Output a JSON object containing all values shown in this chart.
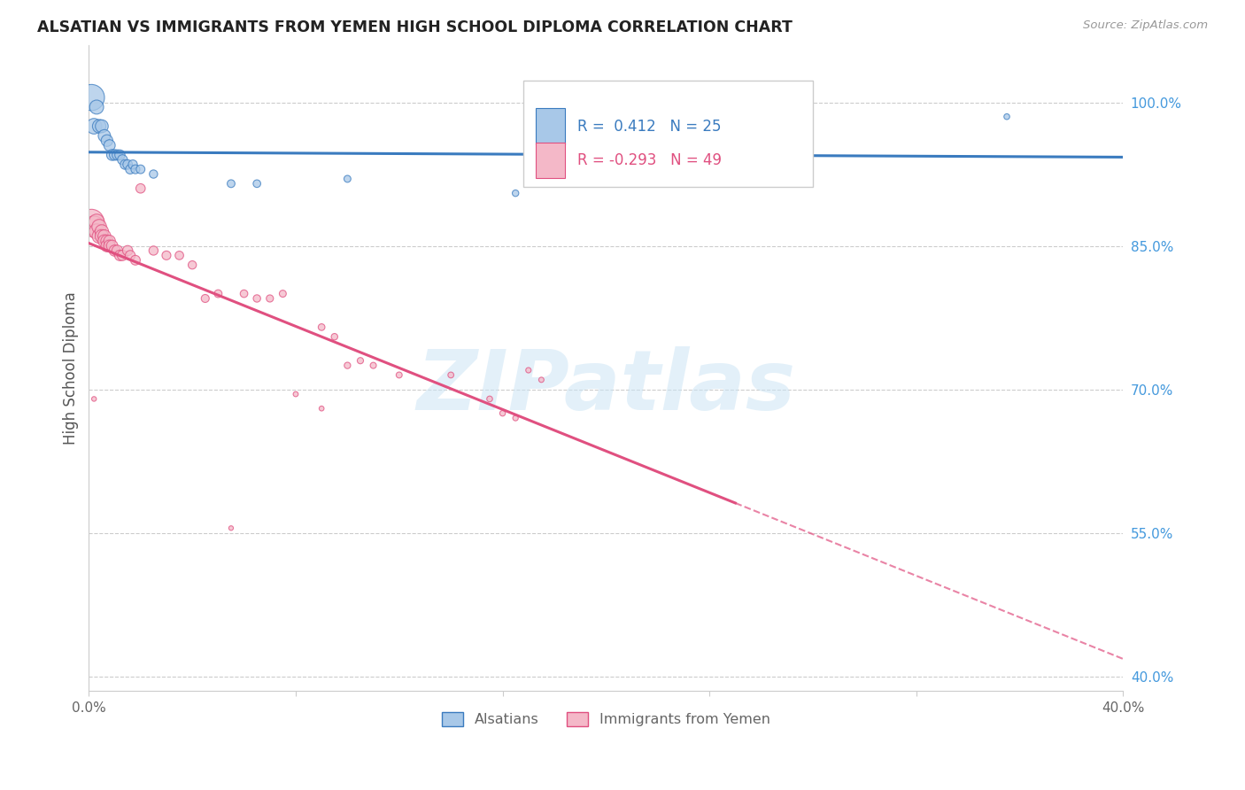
{
  "title": "ALSATIAN VS IMMIGRANTS FROM YEMEN HIGH SCHOOL DIPLOMA CORRELATION CHART",
  "source": "Source: ZipAtlas.com",
  "ylabel": "High School Diploma",
  "legend_labels": [
    "Alsatians",
    "Immigrants from Yemen"
  ],
  "r_blue": 0.412,
  "n_blue": 25,
  "r_pink": -0.293,
  "n_pink": 49,
  "blue_color": "#a8c8e8",
  "pink_color": "#f4b8c8",
  "trendline_blue": "#3a7bbf",
  "trendline_pink": "#e05080",
  "right_ytick_labels": [
    "100.0%",
    "85.0%",
    "70.0%",
    "55.0%",
    "40.0%"
  ],
  "right_ytick_values": [
    1.0,
    0.85,
    0.7,
    0.55,
    0.4
  ],
  "xlim": [
    0.0,
    0.4
  ],
  "ylim": [
    0.385,
    1.06
  ],
  "watermark": "ZIPatlas",
  "blue_dots": [
    [
      0.001,
      1.005
    ],
    [
      0.002,
      0.975
    ],
    [
      0.003,
      0.995
    ],
    [
      0.004,
      0.975
    ],
    [
      0.005,
      0.975
    ],
    [
      0.006,
      0.965
    ],
    [
      0.007,
      0.96
    ],
    [
      0.008,
      0.955
    ],
    [
      0.009,
      0.945
    ],
    [
      0.01,
      0.945
    ],
    [
      0.011,
      0.945
    ],
    [
      0.012,
      0.945
    ],
    [
      0.013,
      0.94
    ],
    [
      0.014,
      0.935
    ],
    [
      0.015,
      0.935
    ],
    [
      0.016,
      0.93
    ],
    [
      0.017,
      0.935
    ],
    [
      0.018,
      0.93
    ],
    [
      0.02,
      0.93
    ],
    [
      0.025,
      0.925
    ],
    [
      0.055,
      0.915
    ],
    [
      0.065,
      0.915
    ],
    [
      0.1,
      0.92
    ],
    [
      0.165,
      0.905
    ],
    [
      0.355,
      0.985
    ]
  ],
  "blue_sizes": [
    450,
    160,
    130,
    120,
    110,
    100,
    90,
    85,
    80,
    75,
    70,
    68,
    65,
    62,
    60,
    58,
    55,
    52,
    50,
    45,
    40,
    38,
    32,
    28,
    22
  ],
  "pink_dots": [
    [
      0.001,
      0.875
    ],
    [
      0.002,
      0.87
    ],
    [
      0.003,
      0.875
    ],
    [
      0.003,
      0.865
    ],
    [
      0.004,
      0.87
    ],
    [
      0.004,
      0.86
    ],
    [
      0.005,
      0.865
    ],
    [
      0.005,
      0.86
    ],
    [
      0.006,
      0.86
    ],
    [
      0.006,
      0.855
    ],
    [
      0.007,
      0.855
    ],
    [
      0.007,
      0.85
    ],
    [
      0.008,
      0.855
    ],
    [
      0.008,
      0.85
    ],
    [
      0.009,
      0.85
    ],
    [
      0.01,
      0.845
    ],
    [
      0.011,
      0.845
    ],
    [
      0.012,
      0.84
    ],
    [
      0.013,
      0.84
    ],
    [
      0.015,
      0.845
    ],
    [
      0.016,
      0.84
    ],
    [
      0.018,
      0.835
    ],
    [
      0.02,
      0.91
    ],
    [
      0.025,
      0.845
    ],
    [
      0.03,
      0.84
    ],
    [
      0.035,
      0.84
    ],
    [
      0.04,
      0.83
    ],
    [
      0.045,
      0.795
    ],
    [
      0.05,
      0.8
    ],
    [
      0.06,
      0.8
    ],
    [
      0.065,
      0.795
    ],
    [
      0.07,
      0.795
    ],
    [
      0.075,
      0.8
    ],
    [
      0.09,
      0.765
    ],
    [
      0.095,
      0.755
    ],
    [
      0.1,
      0.725
    ],
    [
      0.105,
      0.73
    ],
    [
      0.11,
      0.725
    ],
    [
      0.12,
      0.715
    ],
    [
      0.14,
      0.715
    ],
    [
      0.155,
      0.69
    ],
    [
      0.16,
      0.675
    ],
    [
      0.165,
      0.67
    ],
    [
      0.17,
      0.72
    ],
    [
      0.175,
      0.71
    ],
    [
      0.08,
      0.695
    ],
    [
      0.09,
      0.68
    ],
    [
      0.002,
      0.69
    ],
    [
      0.055,
      0.555
    ]
  ],
  "pink_sizes": [
    420,
    300,
    160,
    150,
    140,
    130,
    120,
    115,
    110,
    105,
    100,
    95,
    90,
    88,
    85,
    82,
    78,
    75,
    72,
    68,
    65,
    62,
    58,
    55,
    52,
    48,
    45,
    42,
    40,
    38,
    36,
    34,
    32,
    30,
    28,
    27,
    26,
    25,
    24,
    23,
    22,
    21,
    20,
    19,
    18,
    17,
    16,
    15,
    14
  ]
}
